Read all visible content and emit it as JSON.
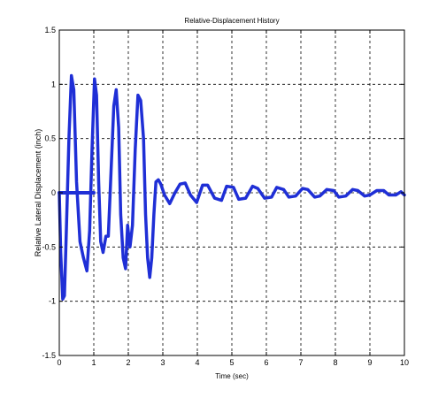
{
  "chart_data": {
    "type": "line",
    "title": "Relative-Displacement History",
    "xlabel": "Time (sec)",
    "ylabel": "Relative Lateral Displacement (inch)",
    "xlim": [
      0,
      10
    ],
    "ylim": [
      -1.5,
      1.5
    ],
    "xticks": [
      0,
      1,
      2,
      3,
      4,
      5,
      6,
      7,
      8,
      9,
      10
    ],
    "yticks": [
      -1.5,
      -1,
      -0.5,
      0,
      0.5,
      1,
      1.5
    ],
    "xtick_labels": [
      "0",
      "1",
      "2",
      "3",
      "4",
      "5",
      "6",
      "7",
      "8",
      "9",
      "10"
    ],
    "ytick_labels": [
      "-1.5",
      "-1",
      "-0.5",
      "0",
      "0.5",
      "1",
      "1.5"
    ],
    "grid": true,
    "grid_style": "dashed",
    "legend": "none",
    "line_color": "#1f2fd6",
    "series": [
      {
        "name": "",
        "x": [
          0.0,
          0.04,
          0.1,
          0.15,
          0.2,
          0.28,
          0.35,
          0.42,
          0.5,
          0.6,
          0.7,
          0.8,
          0.88,
          0.95,
          1.02,
          1.08,
          1.14,
          1.2,
          1.27,
          1.35,
          1.42,
          1.5,
          1.58,
          1.65,
          1.72,
          1.78,
          1.85,
          1.92,
          1.98,
          2.05,
          2.12,
          2.2,
          2.28,
          2.36,
          2.44,
          2.5,
          2.56,
          2.62,
          2.68,
          2.74,
          2.8,
          2.87,
          2.94,
          3.05,
          3.2,
          3.35,
          3.5,
          3.65,
          3.8,
          3.98,
          4.15,
          4.3,
          4.5,
          4.7,
          4.85,
          5.05,
          5.2,
          5.4,
          5.6,
          5.75,
          5.95,
          6.15,
          6.3,
          6.5,
          6.65,
          6.85,
          7.05,
          7.2,
          7.4,
          7.55,
          7.75,
          7.95,
          8.1,
          8.3,
          8.5,
          8.65,
          8.85,
          9.0,
          9.2,
          9.4,
          9.55,
          9.75,
          9.9,
          10.0
        ],
        "y": [
          0.0,
          -0.55,
          -0.98,
          -0.95,
          -0.4,
          0.5,
          1.08,
          0.95,
          0.1,
          -0.45,
          -0.6,
          -0.72,
          -0.35,
          0.4,
          1.05,
          0.9,
          0.1,
          -0.45,
          -0.55,
          -0.4,
          -0.4,
          0.2,
          0.8,
          0.95,
          0.6,
          -0.2,
          -0.6,
          -0.7,
          -0.3,
          -0.5,
          -0.3,
          0.4,
          0.9,
          0.85,
          0.5,
          -0.2,
          -0.6,
          -0.78,
          -0.6,
          -0.2,
          0.1,
          0.12,
          0.08,
          -0.02,
          -0.1,
          0.0,
          0.08,
          0.09,
          -0.02,
          -0.09,
          0.07,
          0.07,
          -0.05,
          -0.07,
          0.06,
          0.05,
          -0.06,
          -0.05,
          0.06,
          0.04,
          -0.05,
          -0.04,
          0.05,
          0.03,
          -0.04,
          -0.03,
          0.04,
          0.03,
          -0.04,
          -0.03,
          0.03,
          0.02,
          -0.04,
          -0.03,
          0.03,
          0.02,
          -0.03,
          -0.02,
          0.02,
          0.02,
          -0.02,
          -0.02,
          0.01,
          -0.02
        ]
      },
      {
        "name": "",
        "x": [
          0.0,
          0.1,
          0.2,
          0.3,
          0.4,
          0.5,
          0.6,
          0.7,
          0.8,
          0.9,
          1.0
        ],
        "y": [
          0.0,
          0.0,
          0.0,
          0.0,
          0.0,
          0.0,
          0.0,
          0.0,
          0.0,
          0.0,
          0.0
        ]
      }
    ]
  }
}
